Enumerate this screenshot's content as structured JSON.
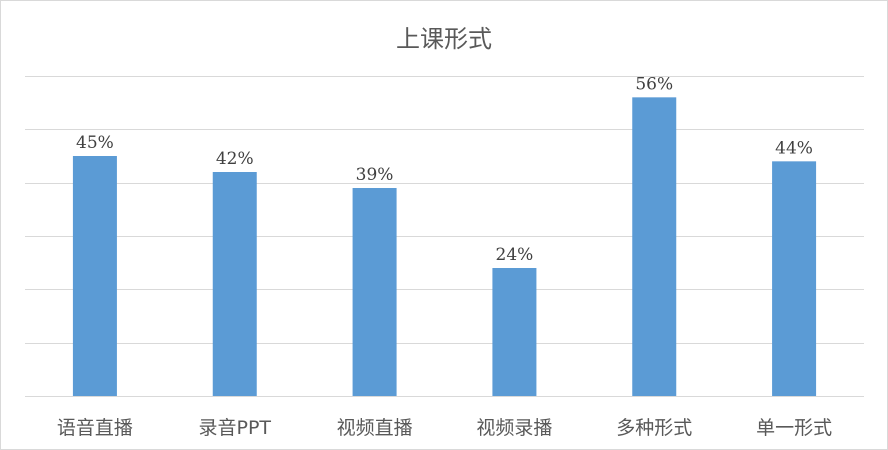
{
  "chart_data": {
    "type": "bar",
    "title": "上课形式",
    "categories": [
      "语音直播",
      "录音PPT",
      "视频直播",
      "视频录播",
      "多种形式",
      "单一形式"
    ],
    "values": [
      45,
      42,
      39,
      24,
      56,
      44
    ],
    "data_labels": [
      "45%",
      "42%",
      "39%",
      "24%",
      "56%",
      "44%"
    ],
    "value_unit": "%",
    "ylim": [
      0,
      60
    ],
    "y_grid_step": 10,
    "y_tick_labels_shown": false,
    "grid": true,
    "legend": "none",
    "bar_color": "#5B9BD5",
    "xlabel": "",
    "ylabel": ""
  }
}
